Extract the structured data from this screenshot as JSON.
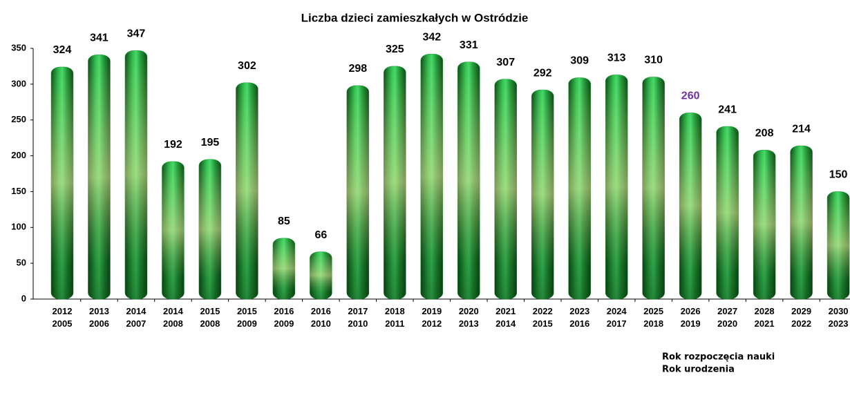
{
  "chart_data": {
    "type": "bar",
    "title": "Liczba dzieci zamieszkałych w Ostródzie",
    "categories": [
      [
        "2012",
        "2005"
      ],
      [
        "2013",
        "2006"
      ],
      [
        "2014",
        "2007"
      ],
      [
        "2014",
        "2008"
      ],
      [
        "2015",
        "2008"
      ],
      [
        "2015",
        "2009"
      ],
      [
        "2016",
        "2009"
      ],
      [
        "2016",
        "2010"
      ],
      [
        "2017",
        "2010"
      ],
      [
        "2018",
        "2011"
      ],
      [
        "2019",
        "2012"
      ],
      [
        "2020",
        "2013"
      ],
      [
        "2021",
        "2014"
      ],
      [
        "2022",
        "2015"
      ],
      [
        "2023",
        "2016"
      ],
      [
        "2024",
        "2017"
      ],
      [
        "2025",
        "2018"
      ],
      [
        "2026",
        "2019"
      ],
      [
        "2027",
        "2020"
      ],
      [
        "2028",
        "2021"
      ],
      [
        "2029",
        "2022"
      ],
      [
        "2030",
        "2023"
      ]
    ],
    "values": [
      324,
      341,
      347,
      192,
      195,
      302,
      85,
      66,
      298,
      325,
      342,
      331,
      307,
      292,
      309,
      313,
      310,
      260,
      241,
      208,
      214,
      150
    ],
    "value_label_colors": [
      "#000",
      "#000",
      "#000",
      "#000",
      "#000",
      "#000",
      "#000",
      "#000",
      "#000",
      "#000",
      "#000",
      "#000",
      "#000",
      "#000",
      "#000",
      "#000",
      "#000",
      "#7030a0",
      "#000",
      "#000",
      "#000",
      "#000"
    ],
    "color": "#1a9a35",
    "x_label": [
      "Rok rozpoczęcia nauki",
      "Rok urodzenia"
    ],
    "ylim": [
      0,
      350
    ],
    "yticks": [
      0,
      50,
      100,
      150,
      200,
      250,
      300,
      350
    ]
  }
}
